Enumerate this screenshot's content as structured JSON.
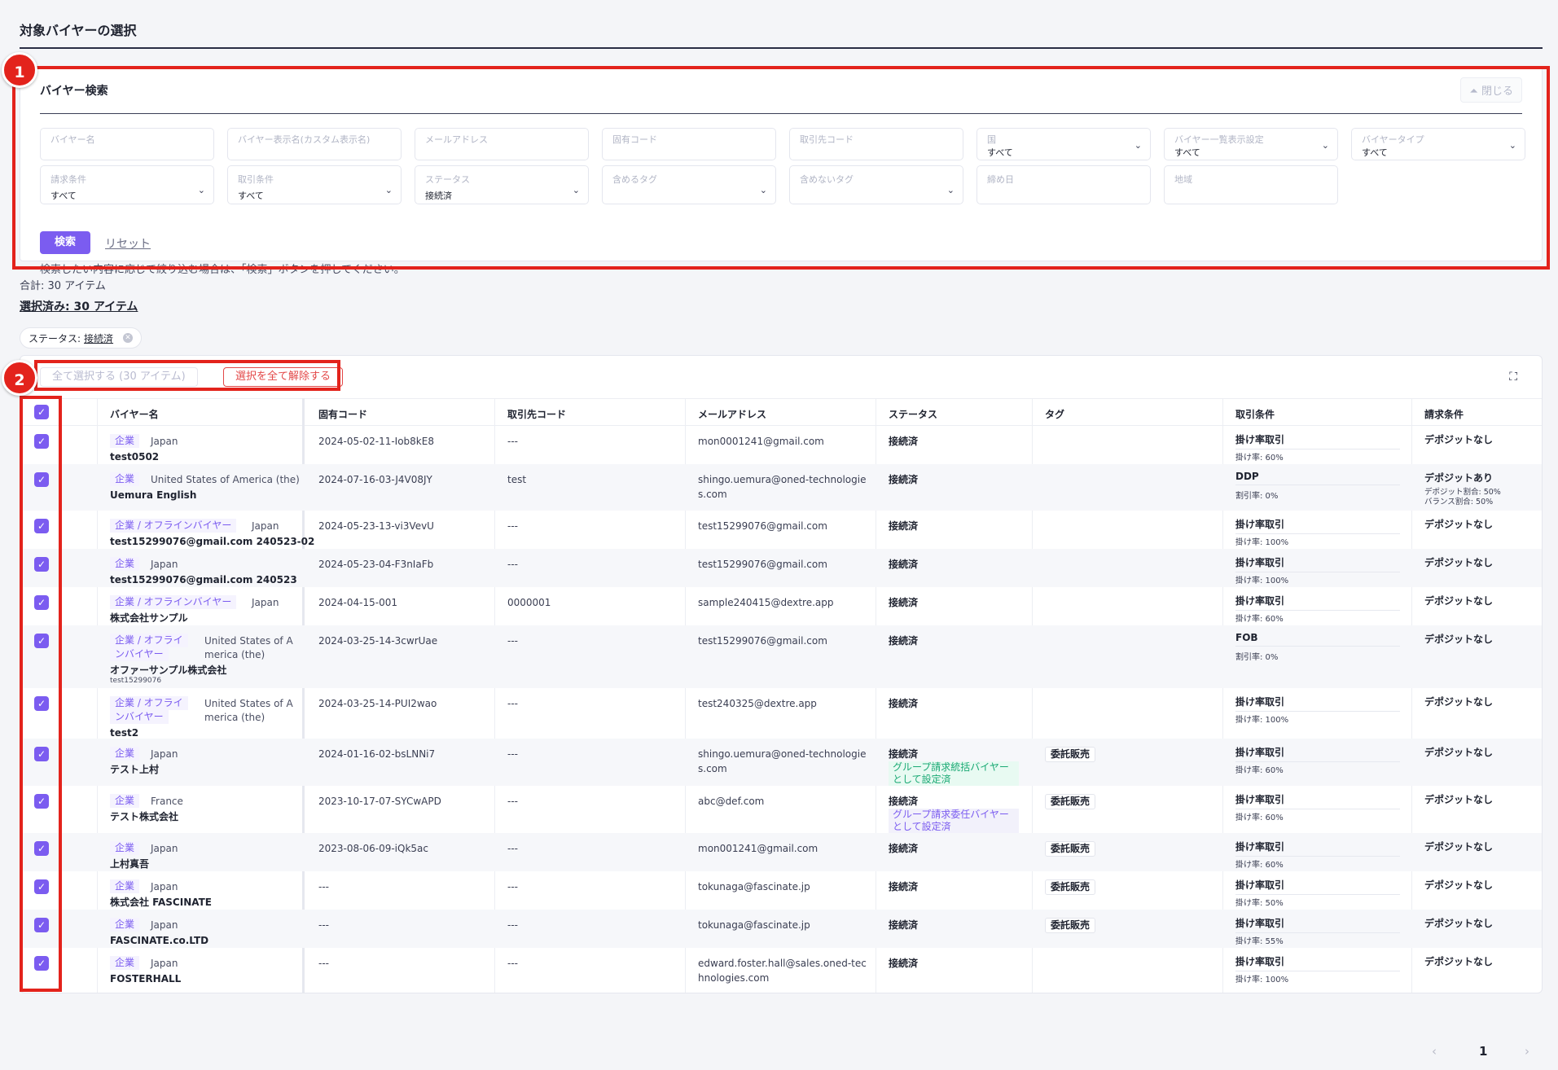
{
  "page_title": "対象バイヤーの選択",
  "search": {
    "title": "バイヤー検索",
    "close_label": "閉じる",
    "fields": {
      "buyer_name": "バイヤー名",
      "display_name": "バイヤー表示名(カスタム表示名)",
      "email": "メールアドレス",
      "unique_code": "固有コード",
      "partner_code": "取引先コード",
      "country": "国",
      "country_value": "すべて",
      "list_display": "バイヤー一覧表示設定",
      "list_display_value": "すべて",
      "buyer_type": "バイヤータイプ",
      "buyer_type_value": "すべて",
      "billing": "請求条件",
      "billing_value": "すべて",
      "trade": "取引条件",
      "trade_value": "すべて",
      "status": "ステータス",
      "status_value": "接続済",
      "include_tags": "含めるタグ",
      "exclude_tags": "含めないタグ",
      "closing_day": "締め日",
      "region": "地域"
    },
    "search_label": "検索",
    "reset_label": "リセット",
    "hint": "検索したい内容に応じて絞り込む場合は、「検索」ボタンを押してください。"
  },
  "annotations": {
    "one": "1",
    "two": "2"
  },
  "summary": {
    "total": "合計: 30 アイテム",
    "selected": "選択済み: 30 アイテム"
  },
  "filter_chip": {
    "key": "ステータス:",
    "value": "接続済"
  },
  "toolbar": {
    "select_all": "全て選択する (30 アイテム)",
    "deselect_all": "選択を全て解除する"
  },
  "columns": {
    "name": "バイヤー名",
    "code": "固有コード",
    "partner": "取引先コード",
    "email": "メールアドレス",
    "status": "ステータス",
    "tag": "タグ",
    "trade": "取引条件",
    "billing": "請求条件"
  },
  "rows": [
    {
      "type": "企業",
      "country": "Japan",
      "name": "test0502",
      "code": "2024-05-02-11-Iob8kE8",
      "partner": "---",
      "email": "mon0001241@gmail.com",
      "status": "接続済",
      "trade": "掛け率取引",
      "trade_sub": "掛け率: 60%",
      "billing": "デポジットなし"
    },
    {
      "type": "企業",
      "country": "United States of America (the)",
      "name": "Uemura English",
      "code": "2024-07-16-03-J4V08JY",
      "partner": "test",
      "email": "shingo.uemura@oned-technologie",
      "email2": "s.com",
      "status": "接続済",
      "trade": "DDP",
      "trade_sub": "割引率: 0%",
      "billing": "デポジットあり",
      "billing_sub": "デポジット割合: 50%",
      "billing_sub2": "バランス割合: 50%"
    },
    {
      "type": "企業 / オフラインバイヤー",
      "country": "Japan",
      "name": "test15299076@gmail.com 240523-02",
      "code": "2024-05-23-13-vi3VevU",
      "partner": "---",
      "email": "test15299076@gmail.com",
      "status": "接続済",
      "trade": "掛け率取引",
      "trade_sub": "掛け率: 100%",
      "billing": "デポジットなし"
    },
    {
      "type": "企業",
      "country": "Japan",
      "name": "test15299076@gmail.com 240523",
      "code": "2024-05-23-04-F3nIaFb",
      "partner": "---",
      "email": "test15299076@gmail.com",
      "status": "接続済",
      "trade": "掛け率取引",
      "trade_sub": "掛け率: 100%",
      "billing": "デポジットなし"
    },
    {
      "type": "企業 / オフラインバイヤー",
      "country": "Japan",
      "name": "株式会社サンプル",
      "code": "2024-04-15-001",
      "partner": "0000001",
      "email": "sample240415@dextre.app",
      "status": "接続済",
      "trade": "掛け率取引",
      "trade_sub": "掛け率: 60%",
      "billing": "デポジットなし"
    },
    {
      "type": "企業 / オフライ",
      "type2": "ンバイヤー",
      "country": "United States of A",
      "country2": "merica (the)",
      "name": "オファーサンプル株式会社",
      "sub": "test15299076",
      "code": "2024-03-25-14-3cwrUae",
      "partner": "---",
      "email": "test15299076@gmail.com",
      "status": "接続済",
      "trade": "FOB",
      "trade_sub": "割引率: 0%",
      "billing": "デポジットなし"
    },
    {
      "type": "企業 / オフライ",
      "type2": "ンバイヤー",
      "country": "United States of A",
      "country2": "merica (the)",
      "name": "test2",
      "code": "2024-03-25-14-PUI2wao",
      "partner": "---",
      "email": "test240325@dextre.app",
      "status": "接続済",
      "trade": "掛け率取引",
      "trade_sub": "掛け率: 100%",
      "billing": "デポジットなし"
    },
    {
      "type": "企業",
      "country": "Japan",
      "name": "テスト上村",
      "code": "2024-01-16-02-bsLNNi7",
      "partner": "---",
      "email": "shingo.uemura@oned-technologie",
      "email2": "s.com",
      "status": "接続済",
      "stag1": "グループ請求統括バイヤー",
      "stag2": "として設定済",
      "tag": "委託販売",
      "trade": "掛け率取引",
      "trade_sub": "掛け率: 60%",
      "billing": "デポジットなし"
    },
    {
      "type": "企業",
      "country": "France",
      "name": "テスト株式会社",
      "code": "2023-10-17-07-SYCwAPD",
      "partner": "---",
      "email": "abc@def.com",
      "status": "接続済",
      "stag1": "グループ請求委任バイヤー",
      "stag2": "として設定済",
      "tag": "委託販売",
      "trade": "掛け率取引",
      "trade_sub": "掛け率: 60%",
      "billing": "デポジットなし"
    },
    {
      "type": "企業",
      "country": "Japan",
      "name": "上村真吾",
      "code": "2023-08-06-09-iQk5ac",
      "partner": "---",
      "email": "mon001241@gmail.com",
      "status": "接続済",
      "tag": "委託販売",
      "trade": "掛け率取引",
      "trade_sub": "掛け率: 60%",
      "billing": "デポジットなし"
    },
    {
      "type": "企業",
      "country": "Japan",
      "name": "株式会社 FASCINATE",
      "code": "---",
      "partner": "---",
      "email": "tokunaga@fascinate.jp",
      "status": "接続済",
      "tag": "委託販売",
      "trade": "掛け率取引",
      "trade_sub": "掛け率: 50%",
      "billing": "デポジットなし"
    },
    {
      "type": "企業",
      "country": "Japan",
      "name": "FASCINATE.co.LTD",
      "code": "---",
      "partner": "---",
      "email": "tokunaga@fascinate.jp",
      "status": "接続済",
      "tag": "委託販売",
      "trade": "掛け率取引",
      "trade_sub": "掛け率: 55%",
      "billing": "デポジットなし"
    },
    {
      "type": "企業",
      "country": "Japan",
      "name": "FOSTERHALL",
      "code": "---",
      "partner": "---",
      "email": "edward.foster.hall@sales.oned-tec",
      "email2": "hnologies.com",
      "status": "接続済",
      "trade": "掛け率取引",
      "trade_sub": "掛け率: 100%",
      "billing": "デポジットなし"
    }
  ],
  "pagination": {
    "prev": "‹",
    "page": "1",
    "next": "›"
  },
  "icons": {
    "checkbox": "check-icon",
    "chevron": "chevron-down-icon",
    "expand": "expand-icon",
    "close": "chevron-up-icon"
  },
  "colors": {
    "accent": "#7b5cf0",
    "annotation": "#e3231c",
    "success": "#1aa974"
  }
}
